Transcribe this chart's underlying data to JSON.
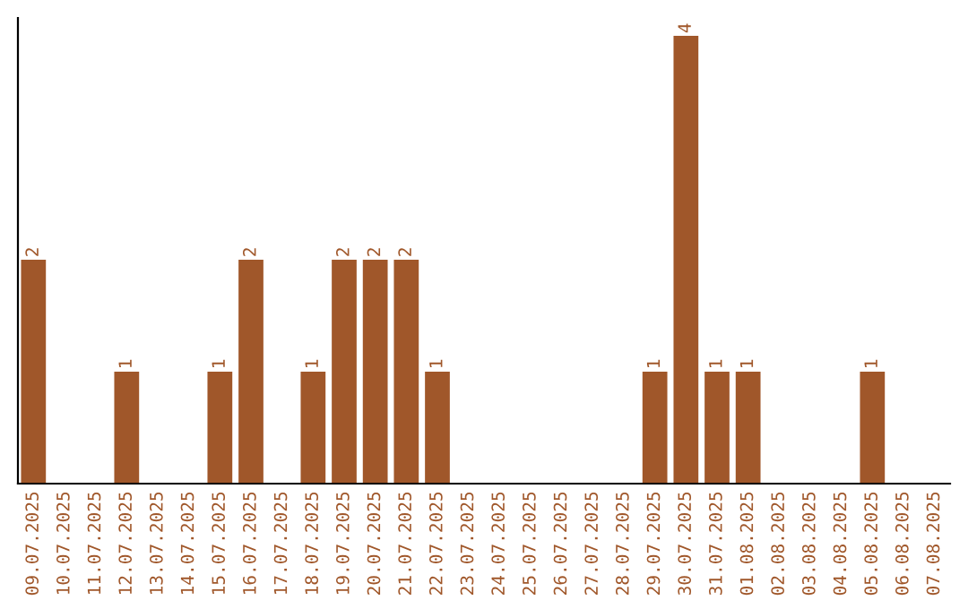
{
  "chart_data": {
    "type": "bar",
    "categories": [
      "09.07.2025",
      "10.07.2025",
      "11.07.2025",
      "12.07.2025",
      "13.07.2025",
      "14.07.2025",
      "15.07.2025",
      "16.07.2025",
      "17.07.2025",
      "18.07.2025",
      "19.07.2025",
      "20.07.2025",
      "21.07.2025",
      "22.07.2025",
      "23.07.2025",
      "24.07.2025",
      "25.07.2025",
      "26.07.2025",
      "27.07.2025",
      "28.07.2025",
      "29.07.2025",
      "30.07.2025",
      "31.07.2025",
      "01.08.2025",
      "02.08.2025",
      "03.08.2025",
      "04.08.2025",
      "05.08.2025",
      "06.08.2025",
      "07.08.2025"
    ],
    "values": [
      2,
      0,
      0,
      1,
      0,
      0,
      1,
      2,
      0,
      1,
      2,
      2,
      2,
      1,
      0,
      0,
      0,
      0,
      0,
      0,
      1,
      4,
      1,
      1,
      0,
      0,
      0,
      1,
      0,
      0
    ],
    "value_labels": [
      "2",
      null,
      null,
      "1",
      null,
      null,
      "1",
      "2",
      null,
      "1",
      "2",
      "2",
      "2",
      "1",
      null,
      null,
      null,
      null,
      null,
      null,
      "1",
      "4",
      "1",
      "1",
      null,
      null,
      null,
      "1",
      null,
      null
    ],
    "color": "#a0572a",
    "grid": false,
    "legend": false
  }
}
